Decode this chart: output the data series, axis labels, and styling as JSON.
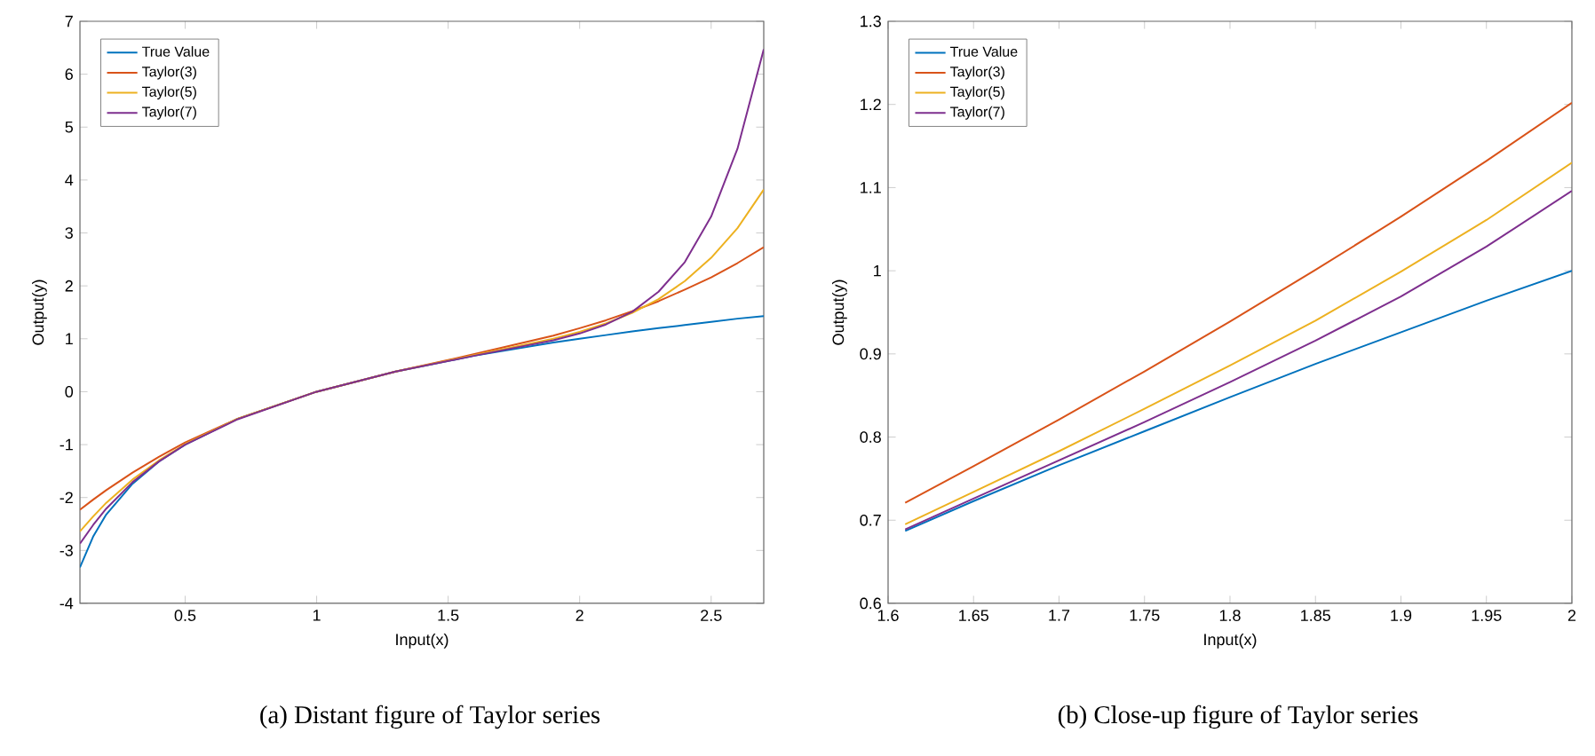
{
  "chart_data": [
    {
      "type": "line",
      "xlabel": "Input(x)",
      "ylabel": "Output(y)",
      "annotations": [
        "(a) Distant figure of Taylor series"
      ],
      "x": [
        0.1,
        0.15,
        0.2,
        0.3,
        0.4,
        0.5,
        0.7,
        1.0,
        1.3,
        1.6,
        1.9,
        2.0,
        2.1,
        2.2,
        2.3,
        2.4,
        2.5,
        2.6,
        2.7
      ],
      "series": [
        {
          "name": "True Value",
          "color": "#0072bd",
          "values": [
            -3.32,
            -2.74,
            -2.32,
            -1.74,
            -1.32,
            -1.0,
            -0.51,
            0.0,
            0.38,
            0.68,
            0.93,
            1.0,
            1.07,
            1.14,
            1.2,
            1.26,
            1.32,
            1.38,
            1.43
          ]
        },
        {
          "name": "Taylor(3)",
          "color": "#d95319",
          "values": [
            -2.23,
            -2.04,
            -1.86,
            -1.53,
            -1.23,
            -0.96,
            -0.51,
            0.0,
            0.38,
            0.71,
            1.06,
            1.2,
            1.35,
            1.52,
            1.71,
            1.93,
            2.16,
            2.43,
            2.73
          ]
        },
        {
          "name": "Taylor(5)",
          "color": "#edb120",
          "values": [
            -2.64,
            -2.36,
            -2.1,
            -1.66,
            -1.3,
            -0.99,
            -0.51,
            0.0,
            0.38,
            0.69,
            1.0,
            1.13,
            1.29,
            1.49,
            1.75,
            2.09,
            2.53,
            3.09,
            3.82
          ]
        },
        {
          "name": "Taylor(7)",
          "color": "#7e2f8e",
          "values": [
            -2.87,
            -2.52,
            -2.21,
            -1.71,
            -1.32,
            -1.0,
            -0.52,
            0.0,
            0.38,
            0.68,
            0.97,
            1.1,
            1.27,
            1.51,
            1.89,
            2.45,
            3.31,
            4.59,
            6.47
          ]
        }
      ],
      "xlim": [
        0.1,
        2.7
      ],
      "ylim": [
        -4,
        7
      ],
      "xticks": [
        0.5,
        1,
        1.5,
        2,
        2.5
      ],
      "yticks": [
        -4,
        -3,
        -2,
        -1,
        0,
        1,
        2,
        3,
        4,
        5,
        6,
        7
      ],
      "grid": false,
      "legend": "top left",
      "marker": "none",
      "line_style": "solid"
    },
    {
      "type": "line",
      "xlabel": "Input(x)",
      "ylabel": "Output(y)",
      "annotations": [
        "(b) Close-up figure of Taylor series"
      ],
      "x": [
        1.61,
        1.65,
        1.7,
        1.75,
        1.8,
        1.85,
        1.9,
        1.95,
        2.0
      ],
      "series": [
        {
          "name": "True Value",
          "color": "#0072bd",
          "values": [
            0.687,
            0.723,
            0.766,
            0.807,
            0.848,
            0.888,
            0.926,
            0.964,
            1.0
          ]
        },
        {
          "name": "Taylor(3)",
          "color": "#d95319",
          "values": [
            0.721,
            0.765,
            0.821,
            0.879,
            0.939,
            1.001,
            1.065,
            1.132,
            1.202
          ]
        },
        {
          "name": "Taylor(5)",
          "color": "#edb120",
          "values": [
            0.695,
            0.734,
            0.783,
            0.834,
            0.886,
            0.94,
            0.999,
            1.061,
            1.13
          ]
        },
        {
          "name": "Taylor(7)",
          "color": "#7e2f8e",
          "values": [
            0.689,
            0.726,
            0.772,
            0.818,
            0.866,
            0.916,
            0.969,
            1.029,
            1.096
          ]
        }
      ],
      "xlim": [
        1.6,
        2.0
      ],
      "ylim": [
        0.6,
        1.3
      ],
      "xticks": [
        1.6,
        1.65,
        1.7,
        1.75,
        1.8,
        1.85,
        1.9,
        1.95,
        2
      ],
      "yticks": [
        0.6,
        0.7,
        0.8,
        0.9,
        1,
        1.1,
        1.2,
        1.3
      ],
      "grid": false,
      "legend": "top left",
      "marker": "none",
      "line_style": "solid"
    }
  ]
}
